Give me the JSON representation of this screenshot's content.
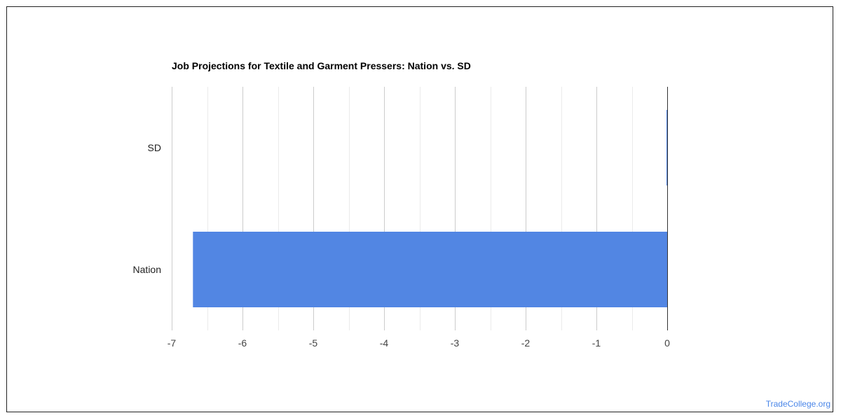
{
  "chart_data": {
    "type": "bar",
    "orientation": "horizontal",
    "title": "Job Projections for Textile and Garment Pressers: Nation vs. SD",
    "categories": [
      "SD",
      "Nation"
    ],
    "values": [
      0,
      -6.7
    ],
    "xlim": [
      -7,
      0
    ],
    "x_ticks": [
      -7,
      -6,
      -5,
      -4,
      -3,
      -2,
      -1,
      0
    ],
    "xlabel": "",
    "ylabel": "",
    "grid": true,
    "legend": "none",
    "bar_color": "#5286e3",
    "grid_color": "#cccccc",
    "minor_grid_color": "#ebebeb",
    "baseline_color": "#333333"
  },
  "watermark": "TradeCollege.org"
}
